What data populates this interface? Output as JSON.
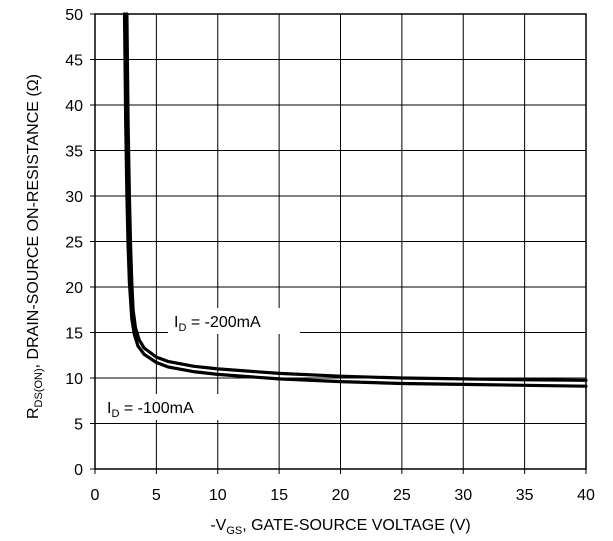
{
  "chart_data": {
    "type": "line",
    "x_axis": {
      "label_prefix": "-V",
      "label_sub": "GS",
      "label_rest": ", GATE-SOURCE  VOLTAGE  (V)",
      "min": 0,
      "max": 40,
      "ticks": [
        0,
        5,
        10,
        15,
        20,
        25,
        30,
        35,
        40
      ]
    },
    "y_axis": {
      "label_prefix": "R",
      "label_sub": "DS(ON)",
      "label_rest": ",  DRAIN-SOURCE  ON-RESISTANCE  (Ω)",
      "min": 0,
      "max": 50,
      "ticks": [
        0,
        5,
        10,
        15,
        20,
        25,
        30,
        35,
        40,
        45,
        50
      ]
    },
    "grid": true,
    "series": [
      {
        "name_prefix": "I",
        "name_sub": "D",
        "name_rest": " = -200mA",
        "x": [
          2.6,
          2.7,
          2.8,
          2.9,
          3.0,
          3.1,
          3.3,
          3.6,
          4,
          5,
          6,
          8,
          10,
          15,
          20,
          25,
          30,
          35,
          40
        ],
        "y": [
          50,
          38,
          30,
          24.5,
          20.5,
          17.5,
          15.5,
          14.2,
          13.3,
          12.3,
          11.8,
          11.3,
          11.0,
          10.5,
          10.2,
          10.0,
          9.9,
          9.8,
          9.75
        ]
      },
      {
        "name_prefix": "I",
        "name_sub": "D",
        "name_rest": " = -100mA",
        "x": [
          2.4,
          2.5,
          2.6,
          2.7,
          2.8,
          3.0,
          3.2,
          3.5,
          4,
          5,
          6,
          8,
          10,
          15,
          20,
          25,
          30,
          35,
          40
        ],
        "y": [
          50,
          38,
          30,
          24.5,
          20.5,
          16.5,
          14.8,
          13.5,
          12.6,
          11.7,
          11.2,
          10.7,
          10.4,
          9.9,
          9.6,
          9.4,
          9.3,
          9.2,
          9.1
        ]
      }
    ]
  }
}
